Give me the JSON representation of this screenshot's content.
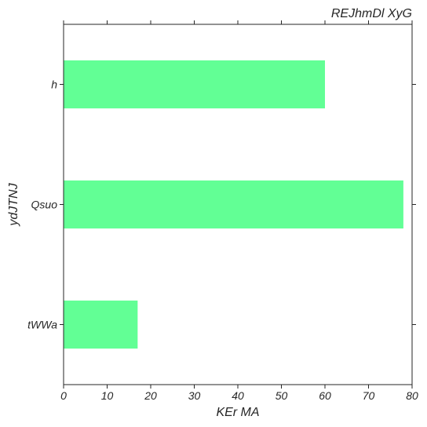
{
  "chart_data": {
    "type": "bar",
    "orientation": "horizontal",
    "title": "REJhmDl XyG",
    "title_position": "top-right",
    "xlabel": "KEr MA",
    "ylabel": "ydJTNJ",
    "categories": [
      "h",
      "Qsuo",
      "tWWa"
    ],
    "values": [
      60,
      78,
      17
    ],
    "xlim": [
      0,
      80
    ],
    "xticks": [
      0,
      10,
      20,
      30,
      40,
      50,
      60,
      70,
      80
    ],
    "grid": false,
    "bar_color": "#62ff95"
  }
}
